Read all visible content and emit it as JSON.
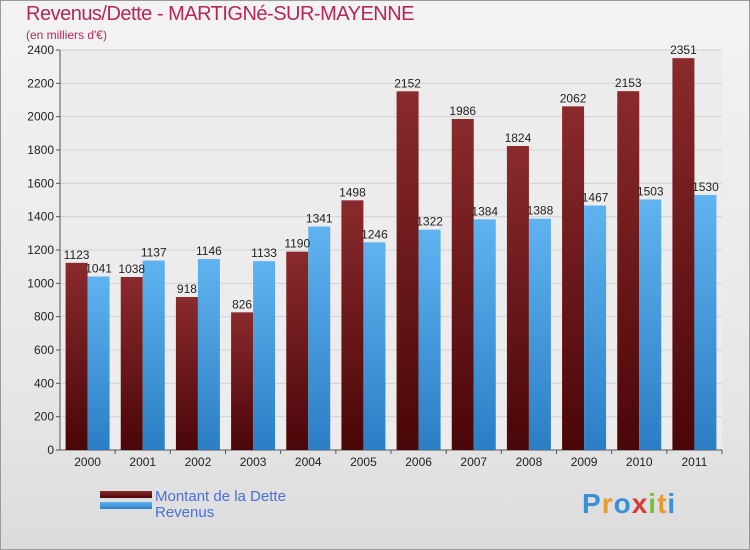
{
  "title": "Revenus/Dette - MARTIGNé-SUR-MAYENNE",
  "subtitle": "(en milliers d'€)",
  "logo_text": "Proxiti",
  "colors": {
    "dette": "#7a1a1c",
    "dette_dark": "#4a0608",
    "revenus": "#4fa6e8",
    "revenus_dark": "#2b7ec4",
    "title": "#b5265a",
    "legend_text": "#4a6fd8"
  },
  "chart_data": {
    "type": "bar",
    "title": "Revenus/Dette - MARTIGNé-SUR-MAYENNE",
    "subtitle": "(en milliers d'€)",
    "categories": [
      "2000",
      "2001",
      "2002",
      "2003",
      "2004",
      "2005",
      "2006",
      "2007",
      "2008",
      "2009",
      "2010",
      "2011"
    ],
    "series": [
      {
        "name": "Montant de la Dette",
        "values": [
          1123,
          1038,
          918,
          826,
          1190,
          1498,
          2152,
          1986,
          1824,
          2062,
          2153,
          2351
        ]
      },
      {
        "name": "Revenus",
        "values": [
          1041,
          1137,
          1146,
          1133,
          1341,
          1246,
          1322,
          1384,
          1388,
          1467,
          1503,
          1530
        ]
      }
    ],
    "ylim": [
      0,
      2400
    ],
    "yticks": [
      0,
      200,
      400,
      600,
      800,
      1000,
      1200,
      1400,
      1600,
      1800,
      2000,
      2200,
      2400
    ],
    "grid": true,
    "legend_position": "bottom-left"
  }
}
